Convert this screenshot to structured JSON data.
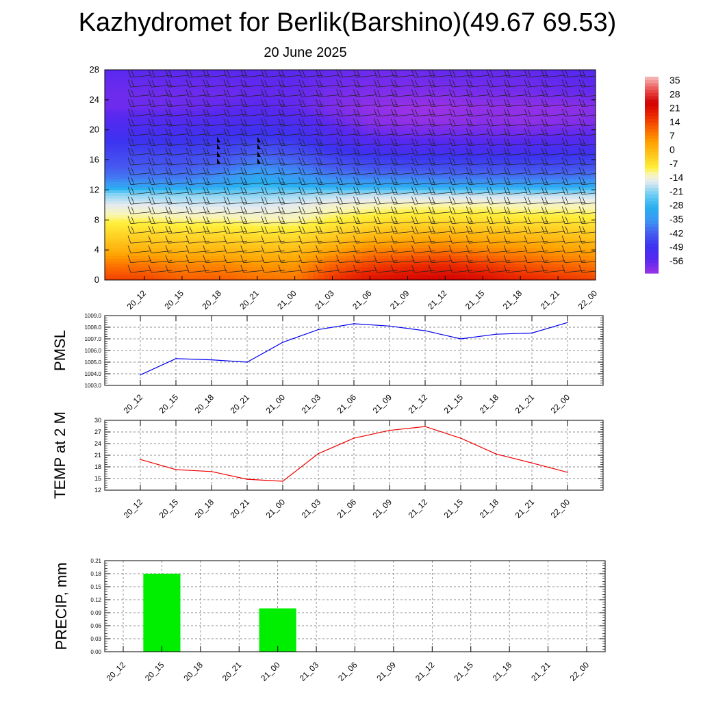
{
  "header": {
    "title": "Kazhydromet for Berlik(Barshino)(49.67 69.53)",
    "subtitle": "20 June 2025"
  },
  "time_labels": [
    "20_12",
    "20_15",
    "20_18",
    "20_21",
    "21_00",
    "21_03",
    "21_06",
    "21_09",
    "21_12",
    "21_15",
    "21_18",
    "21_21",
    "22_00"
  ],
  "chart_data": [
    {
      "type": "heatmap",
      "title": "Kazhydromet for Berlik(Barshino)(49.67 69.53)",
      "subtitle": "20 June 2025",
      "x": [
        "20_12",
        "20_15",
        "20_18",
        "20_21",
        "21_00",
        "21_03",
        "21_06",
        "21_09",
        "21_12",
        "21_15",
        "21_18",
        "21_21",
        "22_00"
      ],
      "ylim": [
        0,
        28
      ],
      "y_ticks": [
        0,
        4,
        8,
        12,
        16,
        20,
        24,
        28
      ],
      "colorbar": {
        "labels": [
          "35",
          "28",
          "21",
          "14",
          "7",
          "0",
          "-7",
          "-14",
          "-21",
          "-28",
          "-35",
          "-42",
          "-49",
          "-56"
        ],
        "range": [
          -63,
          42
        ]
      },
      "temperature_profile": {
        "levels": [
          0,
          2,
          4,
          6,
          8,
          10,
          11.5,
          12.5,
          13.5,
          15,
          17,
          19,
          21,
          23,
          25,
          28
        ],
        "values": [
          [
            18,
            12,
            4,
            -2,
            -8,
            -14,
            -20,
            -32,
            -38,
            -42,
            -46,
            -50,
            -54,
            -58,
            -58,
            -56
          ],
          [
            15,
            10,
            3,
            -3,
            -9,
            -15,
            -20,
            -32,
            -38,
            -42,
            -46,
            -50,
            -54,
            -58,
            -58,
            -56
          ],
          [
            15,
            10,
            3,
            -3,
            -9,
            -15,
            -20,
            -30,
            -35,
            -40,
            -45,
            -49,
            -53,
            -57,
            -58,
            -56
          ],
          [
            13,
            8,
            2,
            -4,
            -10,
            -15,
            -20,
            -26,
            -30,
            -36,
            -42,
            -48,
            -52,
            -56,
            -57,
            -56
          ],
          [
            12,
            8,
            2,
            -4,
            -10,
            -14,
            -19,
            -28,
            -33,
            -38,
            -44,
            -49,
            -53,
            -57,
            -57,
            -56
          ],
          [
            20,
            14,
            6,
            -1,
            -7,
            -12,
            -18,
            -30,
            -36,
            -42,
            -48,
            -53,
            -57,
            -60,
            -59,
            -57
          ],
          [
            25,
            18,
            10,
            2,
            -5,
            -11,
            -17,
            -30,
            -37,
            -43,
            -50,
            -56,
            -61,
            -62,
            -60,
            -58
          ],
          [
            27,
            20,
            11,
            3,
            -4,
            -10,
            -17,
            -30,
            -37,
            -44,
            -51,
            -57,
            -62,
            -63,
            -60,
            -58
          ],
          [
            28,
            21,
            12,
            4,
            -4,
            -10,
            -17,
            -31,
            -38,
            -44,
            -51,
            -57,
            -62,
            -63,
            -60,
            -57
          ],
          [
            26,
            19,
            10,
            3,
            -4,
            -10,
            -17,
            -31,
            -38,
            -44,
            -51,
            -57,
            -61,
            -62,
            -59,
            -57
          ],
          [
            22,
            16,
            9,
            2,
            -5,
            -11,
            -17,
            -31,
            -38,
            -44,
            -51,
            -57,
            -62,
            -62,
            -59,
            -57
          ],
          [
            20,
            14,
            7,
            1,
            -5,
            -11,
            -17,
            -31,
            -38,
            -44,
            -50,
            -56,
            -61,
            -62,
            -58,
            -56
          ],
          [
            18,
            12,
            6,
            0,
            -6,
            -11,
            -17,
            -30,
            -37,
            -43,
            -50,
            -55,
            -60,
            -61,
            -57,
            -55
          ]
        ]
      },
      "wind_barbs": "wind barbs at each time and level; pennant barbs near levels 15-18 at 20_20 and 20_23"
    },
    {
      "type": "line",
      "ylabel": "PMSL",
      "x": [
        "20_12",
        "20_15",
        "20_18",
        "20_21",
        "21_00",
        "21_03",
        "21_06",
        "21_09",
        "21_12",
        "21_15",
        "21_18",
        "21_21",
        "22_00"
      ],
      "series": [
        {
          "color": "#0000ee",
          "values": [
            1003.9,
            1005.3,
            1005.2,
            1005.0,
            1006.7,
            1007.8,
            1008.3,
            1008.1,
            1007.7,
            1007.0,
            1007.4,
            1007.5,
            1008.4
          ]
        }
      ],
      "ylim": [
        1003.0,
        1009.0
      ],
      "y_ticks": [
        "1003.0",
        "1004.0",
        "1005.0",
        "1006.0",
        "1007.0",
        "1008.0",
        "1009.0"
      ],
      "grid": true
    },
    {
      "type": "line",
      "ylabel": "TEMP at 2 M",
      "x": [
        "20_12",
        "20_15",
        "20_18",
        "20_21",
        "21_00",
        "21_03",
        "21_06",
        "21_09",
        "21_12",
        "21_15",
        "21_18",
        "21_21",
        "22_00"
      ],
      "series": [
        {
          "color": "#ee0000",
          "values": [
            19.9,
            17.3,
            16.8,
            14.8,
            14.3,
            21.4,
            25.4,
            27.4,
            28.4,
            25.4,
            21.3,
            19.0,
            16.6
          ]
        }
      ],
      "ylim": [
        12,
        30
      ],
      "y_ticks": [
        "12",
        "15",
        "18",
        "21",
        "24",
        "27",
        "30"
      ],
      "grid": true
    },
    {
      "type": "bar",
      "ylabel": "PRECIP, mm",
      "categories": [
        "20_12",
        "20_15",
        "20_18",
        "20_21",
        "21_00",
        "21_03",
        "21_06",
        "21_09",
        "21_12",
        "21_15",
        "21_18",
        "21_21",
        "22_00"
      ],
      "values": [
        0,
        0.18,
        0,
        0,
        0.1,
        0,
        0,
        0,
        0,
        0,
        0,
        0,
        0
      ],
      "color": "#00ee00",
      "ylim": [
        0,
        0.21
      ],
      "y_ticks": [
        "0.00",
        "0.03",
        "0.06",
        "0.09",
        "0.12",
        "0.15",
        "0.18",
        "0.21"
      ],
      "grid": true
    }
  ]
}
